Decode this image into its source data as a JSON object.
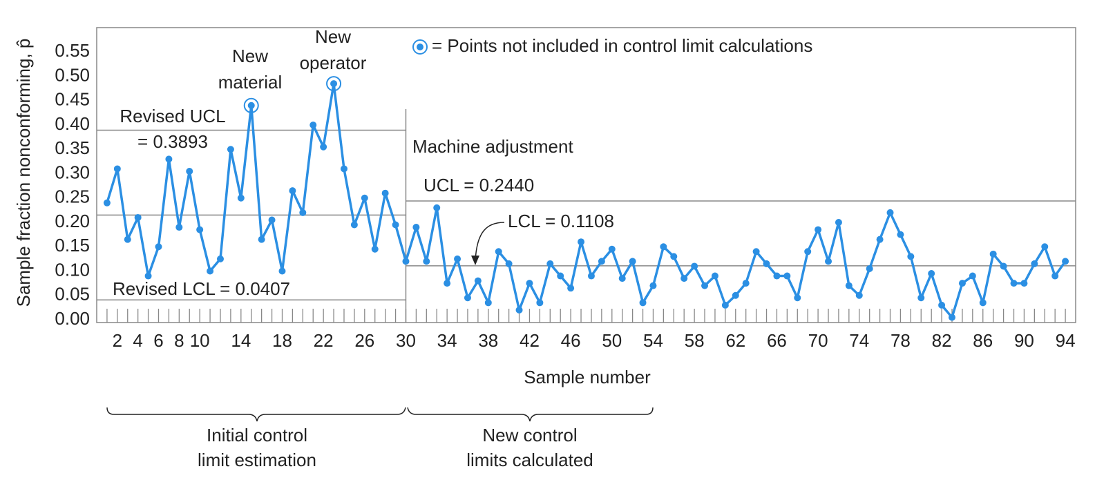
{
  "chart_data": {
    "type": "line",
    "ylabel": "Sample fraction nonconforming, p̂",
    "xlabel": "Sample number",
    "color": "#2b8fe3",
    "x": [
      1,
      2,
      3,
      4,
      5,
      6,
      7,
      8,
      9,
      10,
      11,
      12,
      13,
      14,
      15,
      16,
      17,
      18,
      19,
      20,
      21,
      22,
      23,
      24,
      25,
      26,
      27,
      28,
      29,
      30,
      31,
      32,
      33,
      34,
      35,
      36,
      37,
      38,
      39,
      40,
      41,
      42,
      43,
      44,
      45,
      46,
      47,
      48,
      49,
      50,
      51,
      52,
      53,
      54,
      55,
      56,
      57,
      58,
      59,
      60,
      61,
      62,
      63,
      64,
      65,
      66,
      67,
      68,
      69,
      70,
      71,
      72,
      73,
      74,
      75,
      76,
      77,
      78,
      79,
      80,
      81,
      82,
      83,
      84,
      85,
      86,
      87,
      88,
      89,
      90,
      91,
      92,
      93,
      94
    ],
    "values": [
      0.24,
      0.31,
      0.165,
      0.21,
      0.09,
      0.15,
      0.33,
      0.19,
      0.305,
      0.185,
      0.1,
      0.125,
      0.35,
      0.25,
      0.44,
      0.165,
      0.205,
      0.1,
      0.265,
      0.22,
      0.4,
      0.355,
      0.485,
      0.31,
      0.195,
      0.25,
      0.145,
      0.26,
      0.195,
      0.12,
      0.19,
      0.12,
      0.23,
      0.075,
      0.125,
      0.045,
      0.08,
      0.035,
      0.14,
      0.115,
      0.02,
      0.075,
      0.035,
      0.115,
      0.09,
      0.065,
      0.16,
      0.09,
      0.12,
      0.145,
      0.085,
      0.12,
      0.035,
      0.07,
      0.15,
      0.13,
      0.085,
      0.11,
      0.07,
      0.09,
      0.03,
      0.05,
      0.075,
      0.14,
      0.115,
      0.09,
      0.09,
      0.045,
      0.14,
      0.185,
      0.12,
      0.2,
      0.07,
      0.05,
      0.105,
      0.165,
      0.22,
      0.175,
      0.13,
      0.045,
      0.095,
      0.03,
      0.005,
      0.075,
      0.09,
      0.035,
      0.135,
      0.11,
      0.075,
      0.075,
      0.115,
      0.15,
      0.09,
      0.12
    ],
    "xlim": [
      0,
      95
    ],
    "xticks": [
      2,
      4,
      6,
      8,
      10,
      14,
      18,
      22,
      26,
      30,
      34,
      38,
      42,
      46,
      50,
      54,
      58,
      62,
      66,
      70,
      74,
      78,
      82,
      86,
      90,
      94
    ],
    "ylim": [
      0,
      0.6
    ],
    "yticks": [
      {
        "value": 0,
        "label": "0.00"
      },
      {
        "value": 0.05,
        "label": "0.05"
      },
      {
        "value": 0.1,
        "label": "0.10"
      },
      {
        "value": 0.15,
        "label": "0.15"
      },
      {
        "value": 0.2,
        "label": "0.20"
      },
      {
        "value": 0.25,
        "label": "0.25"
      },
      {
        "value": 0.3,
        "label": "0.30"
      },
      {
        "value": 0.35,
        "label": "0.35"
      },
      {
        "value": 0.4,
        "label": "0.40"
      },
      {
        "value": 0.45,
        "label": "0.45"
      },
      {
        "value": 0.5,
        "label": "0.50"
      },
      {
        "value": 0.55,
        "label": "0.55"
      }
    ],
    "limits": [
      {
        "value": 0.3893,
        "xrange": [
          0,
          30
        ],
        "label": [
          "Revised UCL",
          "= 0.3893"
        ]
      },
      {
        "value": 0.215,
        "xrange": [
          0,
          30
        ]
      },
      {
        "value": 0.0407,
        "xrange": [
          0,
          30
        ],
        "label": [
          "Revised LCL = 0.0407"
        ]
      },
      {
        "value": 0.244,
        "xrange": [
          30,
          95
        ],
        "label": [
          "UCL = 0.2440"
        ]
      },
      {
        "value": 0.1108,
        "xrange": [
          30,
          95
        ],
        "label": [
          "LCL = 0.1108"
        ]
      }
    ],
    "excluded": [
      15,
      23
    ],
    "legend": "= Points not included in control limit calculations",
    "annotations": [
      {
        "text": [
          "New",
          "material"
        ],
        "x": 15
      },
      {
        "text": [
          "New",
          "operator"
        ],
        "x": 23
      },
      {
        "text": [
          "Machine adjustment"
        ],
        "x": 30
      }
    ],
    "periods": [
      {
        "text": [
          "Initial control",
          "limit estimation"
        ]
      },
      {
        "text": [
          "New control",
          "limits calculated"
        ]
      }
    ]
  }
}
